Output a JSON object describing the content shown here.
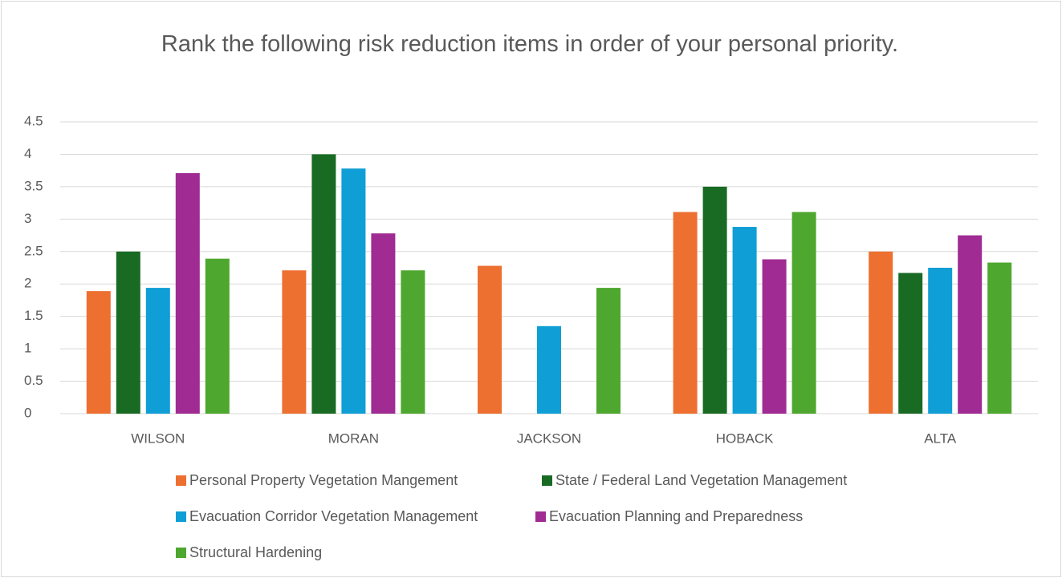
{
  "chart_data": {
    "type": "bar",
    "title": "Rank the following risk reduction items in order of your personal priority.",
    "categories": [
      "WILSON",
      "MORAN",
      "JACKSON",
      "HOBACK",
      "ALTA"
    ],
    "series": [
      {
        "name": "Personal Property Vegetation Mangement",
        "color": "#ed7031",
        "values": [
          1.89,
          2.21,
          2.28,
          3.11,
          2.5
        ]
      },
      {
        "name": "State / Federal Land Vegetation Management",
        "color": "#196b24",
        "values": [
          2.5,
          4.0,
          0,
          3.5,
          2.17
        ]
      },
      {
        "name": "Evacuation Corridor Vegetation Management",
        "color": "#0f9ed5",
        "values": [
          1.94,
          3.78,
          1.35,
          2.88,
          2.25
        ]
      },
      {
        "name": "Evacuation Planning and Preparedness",
        "color": "#a02b93",
        "values": [
          3.71,
          2.78,
          0,
          2.38,
          2.75
        ]
      },
      {
        "name": "Structural Hardening",
        "color": "#4ea72e",
        "values": [
          2.39,
          2.21,
          1.94,
          3.11,
          2.33
        ]
      }
    ],
    "ylim": [
      0,
      4.5
    ],
    "yticks": [
      0,
      0.5,
      1,
      1.5,
      2,
      2.5,
      3,
      3.5,
      4,
      4.5
    ],
    "grid": true,
    "legend": "bottom"
  }
}
